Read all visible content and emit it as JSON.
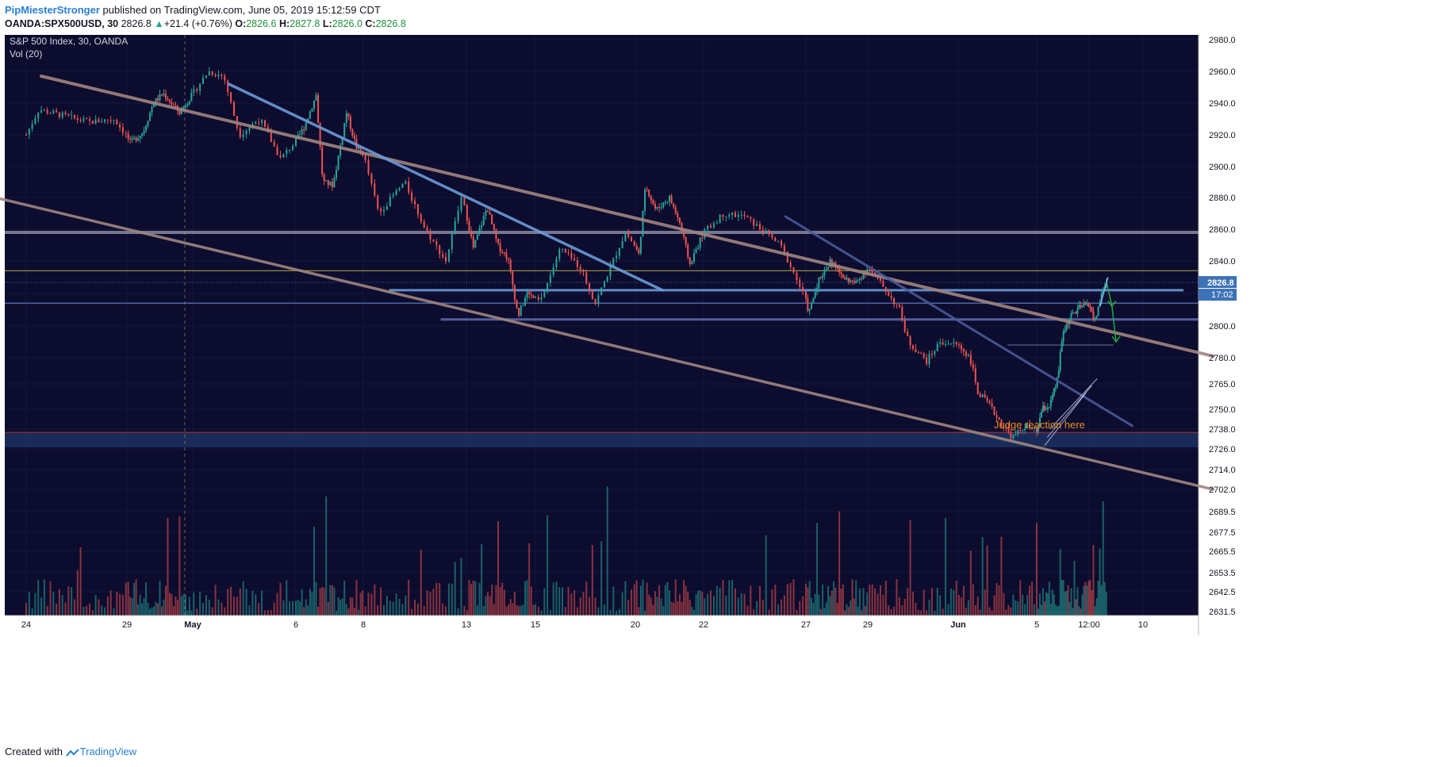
{
  "header": {
    "author": "PipMiesterStronger",
    "published": "published on TradingView.com, June 05, 2019 15:12:59 CDT",
    "symbol": "OANDA:SPX500USD, 30",
    "last": "2826.8",
    "change": "+21.4 (+0.76%)",
    "o_label": "O:",
    "o_value": "2826.6",
    "h_label": "H:",
    "h_value": "2827.8",
    "l_label": "L:",
    "l_value": "2826.0",
    "c_label": "C:",
    "c_value": "2826.8"
  },
  "legend": {
    "title": "S&P 500 Index, 30, OANDA",
    "indicator": "Vol (20)"
  },
  "footer": {
    "created_with": "Created with",
    "brand": "TradingView"
  },
  "colors": {
    "background": "#0c0c2e",
    "up_candle": "#26a69a",
    "down_candle": "#ef5350",
    "trendline_brown": "#a08580",
    "trendline_blue": "#6b9bd8",
    "trendline_navy": "#4a5a9a",
    "level_grey": "#9a9ab0",
    "level_yellow": "#c8c040",
    "level_red": "#d03030",
    "zone_blue": "#1c2f5e",
    "annotation_orange": "#e8901e",
    "arrow_green": "#22aa44",
    "price_tag": "#3d72b8"
  },
  "chart_data": {
    "type": "candlestick",
    "title": "S&P 500 Index, 30, OANDA",
    "symbol": "OANDA:SPX500USD",
    "interval": "30",
    "y_ticks": [
      2980.0,
      2960.0,
      2940.0,
      2920.0,
      2900.0,
      2880.0,
      2860.0,
      2840.0,
      2820.0,
      2800.0,
      2780.0,
      2765.0,
      2750.0,
      2738.0,
      2726.0,
      2714.0,
      2702.0,
      2689.5,
      2677.5,
      2665.5,
      2653.5,
      2642.5,
      2631.5
    ],
    "y_tick_labels": [
      "2980.0",
      "2960.0",
      "2940.0",
      "2920.0",
      "2900.0",
      "2880.0",
      "2860.0",
      "2840.0",
      "2820.0",
      "2800.0",
      "2780.0",
      "2765.0",
      "2750.0",
      "2738.0",
      "2726.0",
      "2714.0",
      "2702.0",
      "2689.5",
      "2677.5",
      "2665.5",
      "2653.5",
      "2642.5",
      "2631.5"
    ],
    "x_tick_labels": [
      "24",
      "29",
      "May",
      "6",
      "8",
      "13",
      "15",
      "20",
      "22",
      "27",
      "29",
      "Jun",
      "5",
      "12:00",
      "10"
    ],
    "x_bold": [
      false,
      false,
      true,
      false,
      false,
      false,
      false,
      false,
      false,
      false,
      false,
      true,
      false,
      false,
      false
    ],
    "last_price": 2826.8,
    "last_price_label": "2826.8",
    "countdown_label": "17:02",
    "close_path": [
      [
        0.0,
        2920
      ],
      [
        0.5,
        2936
      ],
      [
        1.5,
        2932
      ],
      [
        2.5,
        2928
      ],
      [
        3.5,
        2930
      ],
      [
        4.2,
        2915
      ],
      [
        5.0,
        2922
      ],
      [
        5.6,
        2940
      ],
      [
        6.2,
        2946
      ],
      [
        7.2,
        2934
      ],
      [
        8.0,
        2946
      ],
      [
        8.6,
        2960
      ],
      [
        9.2,
        2957
      ],
      [
        9.8,
        2920
      ],
      [
        10.6,
        2930
      ],
      [
        11.4,
        2905
      ],
      [
        12.5,
        2925
      ],
      [
        13.2,
        2945
      ],
      [
        13.6,
        2890
      ],
      [
        14.2,
        2888
      ],
      [
        15.0,
        2934
      ],
      [
        15.6,
        2912
      ],
      [
        16.0,
        2908
      ],
      [
        16.6,
        2870
      ],
      [
        17.6,
        2890
      ],
      [
        18.4,
        2860
      ],
      [
        19.2,
        2840
      ],
      [
        19.8,
        2880
      ],
      [
        20.4,
        2848
      ],
      [
        21.2,
        2874
      ],
      [
        21.8,
        2850
      ],
      [
        22.4,
        2842
      ],
      [
        23.0,
        2806
      ],
      [
        23.5,
        2820
      ],
      [
        24.2,
        2815
      ],
      [
        25.0,
        2848
      ],
      [
        25.8,
        2836
      ],
      [
        26.4,
        2814
      ],
      [
        27.0,
        2836
      ],
      [
        27.6,
        2858
      ],
      [
        28.2,
        2844
      ],
      [
        28.6,
        2888
      ],
      [
        29.2,
        2872
      ],
      [
        30.0,
        2880
      ],
      [
        30.6,
        2864
      ],
      [
        31.2,
        2838
      ],
      [
        32.0,
        2858
      ],
      [
        32.8,
        2870
      ],
      [
        33.6,
        2868
      ],
      [
        34.4,
        2858
      ],
      [
        35.0,
        2850
      ],
      [
        35.6,
        2830
      ],
      [
        36.2,
        2808
      ],
      [
        36.8,
        2828
      ],
      [
        37.6,
        2840
      ],
      [
        38.4,
        2830
      ],
      [
        39.2,
        2826
      ],
      [
        40.0,
        2836
      ],
      [
        40.8,
        2822
      ],
      [
        41.4,
        2810
      ],
      [
        41.8,
        2790
      ],
      [
        42.6,
        2778
      ],
      [
        43.2,
        2790
      ],
      [
        44.0,
        2788
      ],
      [
        44.6,
        2780
      ],
      [
        45.0,
        2760
      ],
      [
        45.6,
        2752
      ],
      [
        46.4,
        2738
      ],
      [
        46.8,
        2733
      ],
      [
        47.4,
        2740
      ],
      [
        48.0,
        2736
      ],
      [
        48.4,
        2750
      ],
      [
        49.0,
        2752
      ],
      [
        49.6,
        2768
      ],
      [
        50.0,
        2796
      ],
      [
        50.6,
        2806
      ],
      [
        51.4,
        2812
      ],
      [
        52.0,
        2814
      ],
      [
        52.4,
        2802
      ],
      [
        53.0,
        2822
      ],
      [
        53.3,
        2826.8
      ]
    ],
    "trendlines": [
      {
        "x": [
          0.6,
          61.2
        ],
        "y": [
          2957,
          2781
        ]
      },
      {
        "x": [
          -2.0,
          61.2
        ],
        "y": [
          2883,
          2702
        ]
      },
      {
        "x": [
          9.4,
          29.6
        ],
        "y": [
          2952,
          2822
        ]
      },
      {
        "x": [
          35.2,
          55.2
        ],
        "y": [
          2868,
          2740
        ]
      }
    ],
    "levels": [
      {
        "y": 2858,
        "x": [
          -9,
          61
        ]
      },
      {
        "y": 2834,
        "x": [
          -9,
          61
        ]
      },
      {
        "y": 2822,
        "x": [
          17,
          59
        ]
      },
      {
        "y": 2814,
        "x": [
          -9,
          61
        ]
      },
      {
        "y": 2804,
        "x": [
          19,
          61
        ]
      },
      {
        "y": 2788,
        "x": [
          46.5,
          53.8
        ]
      },
      {
        "y": 2736,
        "x": [
          -9,
          61
        ]
      }
    ],
    "zone": {
      "y": [
        2736,
        2727
      ]
    },
    "channel": [
      {
        "x": [
          48.6,
          51.8
        ],
        "y": [
          2728,
          2760
        ]
      },
      {
        "x": [
          48.8,
          52.2
        ],
        "y": [
          2733,
          2764
        ]
      },
      {
        "x": [
          49.0,
          52.6
        ],
        "y": [
          2738,
          2768
        ]
      }
    ],
    "annotation": "Judge reaction here"
  }
}
